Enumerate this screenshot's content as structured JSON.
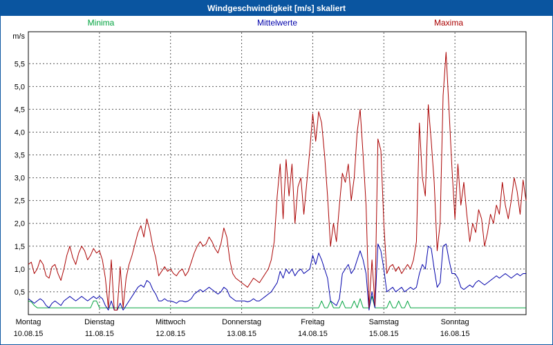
{
  "title_bar": {
    "title": "Windgeschwindigkeit [m/s] skaliert"
  },
  "legend": {
    "minima": "Minima",
    "mittelwerte": "Mittelwerte",
    "maxima": "Maxima"
  },
  "colors": {
    "title_bg": "#0a55a0",
    "title_fg": "#ffffff",
    "minima": "#00a33e",
    "mittelwerte": "#0000aa",
    "maxima": "#aa0000",
    "grid": "#555555",
    "axis": "#000000",
    "plot_bg": "#ffffff",
    "page_bg": "#ffffff",
    "border": "#0a55a0"
  },
  "chart_data": {
    "type": "line",
    "title": "Windgeschwindigkeit [m/s] skaliert",
    "ylabel": "m/s",
    "xlabel": "",
    "ylim": [
      0,
      6.2
    ],
    "ytick_step": 0.5,
    "ytick_labels": [
      "0,5",
      "1,0",
      "1,5",
      "2,0",
      "2,5",
      "3,0",
      "3,5",
      "4,0",
      "4,5",
      "5,0",
      "5,5"
    ],
    "grid": true,
    "legend_position": "top",
    "x_unit": "hours",
    "x_hours_total": 168,
    "x_days": [
      {
        "name": "Montag",
        "date": "10.08.15"
      },
      {
        "name": "Dienstag",
        "date": "11.08.15"
      },
      {
        "name": "Mittwoch",
        "date": "12.08.15"
      },
      {
        "name": "Donnerstag",
        "date": "13.08.15"
      },
      {
        "name": "Freitag",
        "date": "14.08.15"
      },
      {
        "name": "Samstag",
        "date": "15.08.15"
      },
      {
        "name": "Sonntag",
        "date": "16.08.15"
      }
    ],
    "series": [
      {
        "name": "Maxima",
        "color_key": "maxima",
        "values": [
          1.1,
          1.15,
          0.9,
          1.0,
          1.2,
          1.1,
          0.85,
          0.8,
          1.05,
          1.1,
          0.9,
          0.75,
          1.0,
          1.3,
          1.5,
          1.25,
          1.1,
          1.35,
          1.5,
          1.4,
          1.2,
          1.3,
          1.45,
          1.35,
          1.4,
          1.2,
          0.8,
          0.15,
          1.2,
          0.1,
          0.1,
          1.05,
          0.15,
          0.8,
          1.1,
          1.3,
          1.55,
          1.8,
          1.95,
          1.7,
          2.1,
          1.85,
          1.5,
          1.25,
          0.85,
          0.95,
          1.05,
          0.95,
          1.0,
          0.9,
          0.85,
          0.95,
          1.0,
          0.85,
          0.95,
          1.15,
          1.35,
          1.5,
          1.6,
          1.5,
          1.55,
          1.7,
          1.6,
          1.45,
          1.35,
          1.55,
          1.9,
          1.7,
          1.2,
          0.9,
          0.8,
          0.75,
          0.7,
          0.65,
          0.6,
          0.7,
          0.8,
          0.75,
          0.7,
          0.8,
          0.9,
          1.0,
          1.2,
          1.6,
          2.6,
          3.3,
          2.1,
          3.4,
          2.6,
          3.3,
          2.0,
          2.8,
          3.0,
          2.2,
          2.9,
          3.6,
          4.4,
          3.8,
          4.45,
          4.2,
          3.5,
          2.6,
          1.5,
          2.0,
          1.6,
          2.4,
          3.1,
          2.9,
          3.3,
          2.5,
          3.0,
          4.0,
          4.5,
          3.5,
          2.4,
          0.15,
          1.2,
          0.2,
          3.85,
          3.6,
          2.0,
          0.9,
          1.05,
          1.1,
          0.95,
          1.05,
          0.9,
          1.0,
          1.1,
          1.0,
          1.2,
          1.6,
          4.2,
          3.0,
          2.6,
          4.6,
          3.8,
          2.9,
          1.4,
          2.0,
          4.8,
          5.75,
          4.5,
          3.2,
          2.1,
          3.3,
          2.4,
          2.9,
          2.2,
          1.6,
          2.0,
          1.8,
          2.3,
          2.1,
          1.5,
          1.8,
          2.2,
          2.0,
          2.4,
          2.2,
          2.9,
          2.4,
          2.1,
          2.5,
          3.0,
          2.7,
          2.2,
          2.95,
          2.5
        ]
      },
      {
        "name": "Mittelwerte",
        "color_key": "mittelwerte",
        "values": [
          0.35,
          0.3,
          0.25,
          0.3,
          0.35,
          0.3,
          0.2,
          0.15,
          0.25,
          0.3,
          0.25,
          0.2,
          0.3,
          0.35,
          0.4,
          0.35,
          0.3,
          0.35,
          0.4,
          0.35,
          0.3,
          0.35,
          0.4,
          0.35,
          0.4,
          0.35,
          0.2,
          0.1,
          0.3,
          0.1,
          0.1,
          0.25,
          0.1,
          0.2,
          0.3,
          0.4,
          0.5,
          0.6,
          0.65,
          0.6,
          0.75,
          0.7,
          0.55,
          0.45,
          0.3,
          0.3,
          0.35,
          0.3,
          0.3,
          0.28,
          0.25,
          0.3,
          0.3,
          0.28,
          0.3,
          0.35,
          0.45,
          0.5,
          0.55,
          0.5,
          0.55,
          0.6,
          0.55,
          0.5,
          0.45,
          0.5,
          0.6,
          0.55,
          0.4,
          0.35,
          0.3,
          0.3,
          0.3,
          0.3,
          0.28,
          0.3,
          0.35,
          0.3,
          0.3,
          0.35,
          0.4,
          0.45,
          0.5,
          0.6,
          0.7,
          0.95,
          0.8,
          1.0,
          0.9,
          1.0,
          0.85,
          0.95,
          1.0,
          0.9,
          0.95,
          1.0,
          1.3,
          1.1,
          1.35,
          1.2,
          1.0,
          0.8,
          0.3,
          0.25,
          0.2,
          0.35,
          0.9,
          1.0,
          1.1,
          0.9,
          1.0,
          1.2,
          1.4,
          1.2,
          0.9,
          0.1,
          0.5,
          0.15,
          1.55,
          1.4,
          1.0,
          0.5,
          0.55,
          0.6,
          0.5,
          0.55,
          0.6,
          0.5,
          0.55,
          0.6,
          0.55,
          0.6,
          0.9,
          1.1,
          1.0,
          1.5,
          1.45,
          1.0,
          0.6,
          0.7,
          1.5,
          1.55,
          1.2,
          0.9,
          0.9,
          0.8,
          0.6,
          0.55,
          0.6,
          0.65,
          0.6,
          0.7,
          0.75,
          0.7,
          0.65,
          0.7,
          0.75,
          0.8,
          0.85,
          0.8,
          0.85,
          0.9,
          0.85,
          0.8,
          0.85,
          0.9,
          0.85,
          0.9,
          0.9
        ]
      },
      {
        "name": "Minima",
        "color_key": "minima",
        "values": [
          0.3,
          0.28,
          0.2,
          0.15,
          0.15,
          0.15,
          0.15,
          0.15,
          0.15,
          0.15,
          0.15,
          0.15,
          0.15,
          0.15,
          0.15,
          0.15,
          0.15,
          0.15,
          0.15,
          0.15,
          0.15,
          0.15,
          0.3,
          0.3,
          0.15,
          0.15,
          0.15,
          0.15,
          0.15,
          0.15,
          0.15,
          0.15,
          0.15,
          0.15,
          0.15,
          0.15,
          0.15,
          0.15,
          0.15,
          0.15,
          0.15,
          0.15,
          0.15,
          0.15,
          0.15,
          0.15,
          0.15,
          0.15,
          0.15,
          0.15,
          0.15,
          0.15,
          0.15,
          0.15,
          0.15,
          0.15,
          0.15,
          0.15,
          0.15,
          0.15,
          0.15,
          0.15,
          0.15,
          0.15,
          0.15,
          0.15,
          0.15,
          0.15,
          0.15,
          0.15,
          0.15,
          0.15,
          0.15,
          0.15,
          0.15,
          0.15,
          0.15,
          0.15,
          0.15,
          0.15,
          0.15,
          0.15,
          0.15,
          0.15,
          0.15,
          0.15,
          0.15,
          0.15,
          0.15,
          0.15,
          0.15,
          0.15,
          0.15,
          0.15,
          0.15,
          0.15,
          0.15,
          0.15,
          0.15,
          0.3,
          0.15,
          0.15,
          0.3,
          0.15,
          0.15,
          0.15,
          0.3,
          0.15,
          0.15,
          0.15,
          0.3,
          0.15,
          0.35,
          0.15,
          0.15,
          0.15,
          0.4,
          0.15,
          0.15,
          0.15,
          0.15,
          0.15,
          0.3,
          0.15,
          0.15,
          0.3,
          0.15,
          0.15,
          0.3,
          0.15,
          0.15,
          0.15,
          0.15,
          0.15,
          0.15,
          0.15,
          0.15,
          0.15,
          0.15,
          0.15,
          0.15,
          0.15,
          0.15,
          0.15,
          0.15,
          0.15,
          0.15,
          0.15,
          0.15,
          0.15,
          0.15,
          0.15,
          0.15,
          0.15,
          0.15,
          0.15,
          0.15,
          0.15,
          0.15,
          0.15,
          0.15,
          0.15,
          0.15,
          0.15,
          0.15,
          0.15,
          0.15,
          0.15,
          0.15
        ]
      }
    ]
  }
}
